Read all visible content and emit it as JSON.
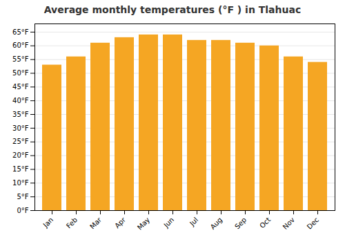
{
  "chart_data": {
    "type": "bar",
    "title": "Average monthly temperatures (°F ) in Tlahuac",
    "categories": [
      "Jan",
      "Feb",
      "Mar",
      "Apr",
      "May",
      "Jun",
      "Jul",
      "Aug",
      "Sep",
      "Oct",
      "Nov",
      "Dec"
    ],
    "values": [
      53,
      56,
      61,
      63,
      64,
      64,
      62,
      62,
      61,
      60,
      56,
      54
    ],
    "color": "#F5A623",
    "ylim": [
      0,
      68
    ],
    "yticks": [
      {
        "value": 0,
        "label": "0°F"
      },
      {
        "value": 5,
        "label": "5°F"
      },
      {
        "value": 10,
        "label": "10°F"
      },
      {
        "value": 15,
        "label": "15°F"
      },
      {
        "value": 20,
        "label": "20°F"
      },
      {
        "value": 25,
        "label": "25°F"
      },
      {
        "value": 30,
        "label": "30°F"
      },
      {
        "value": 35,
        "label": "35°F"
      },
      {
        "value": 40,
        "label": "40°F"
      },
      {
        "value": 45,
        "label": "45°F"
      },
      {
        "value": 50,
        "label": "50°F"
      },
      {
        "value": 55,
        "label": "55°F"
      },
      {
        "value": 60,
        "label": "60°F"
      },
      {
        "value": 65,
        "label": "65°F"
      }
    ],
    "grid": true
  }
}
